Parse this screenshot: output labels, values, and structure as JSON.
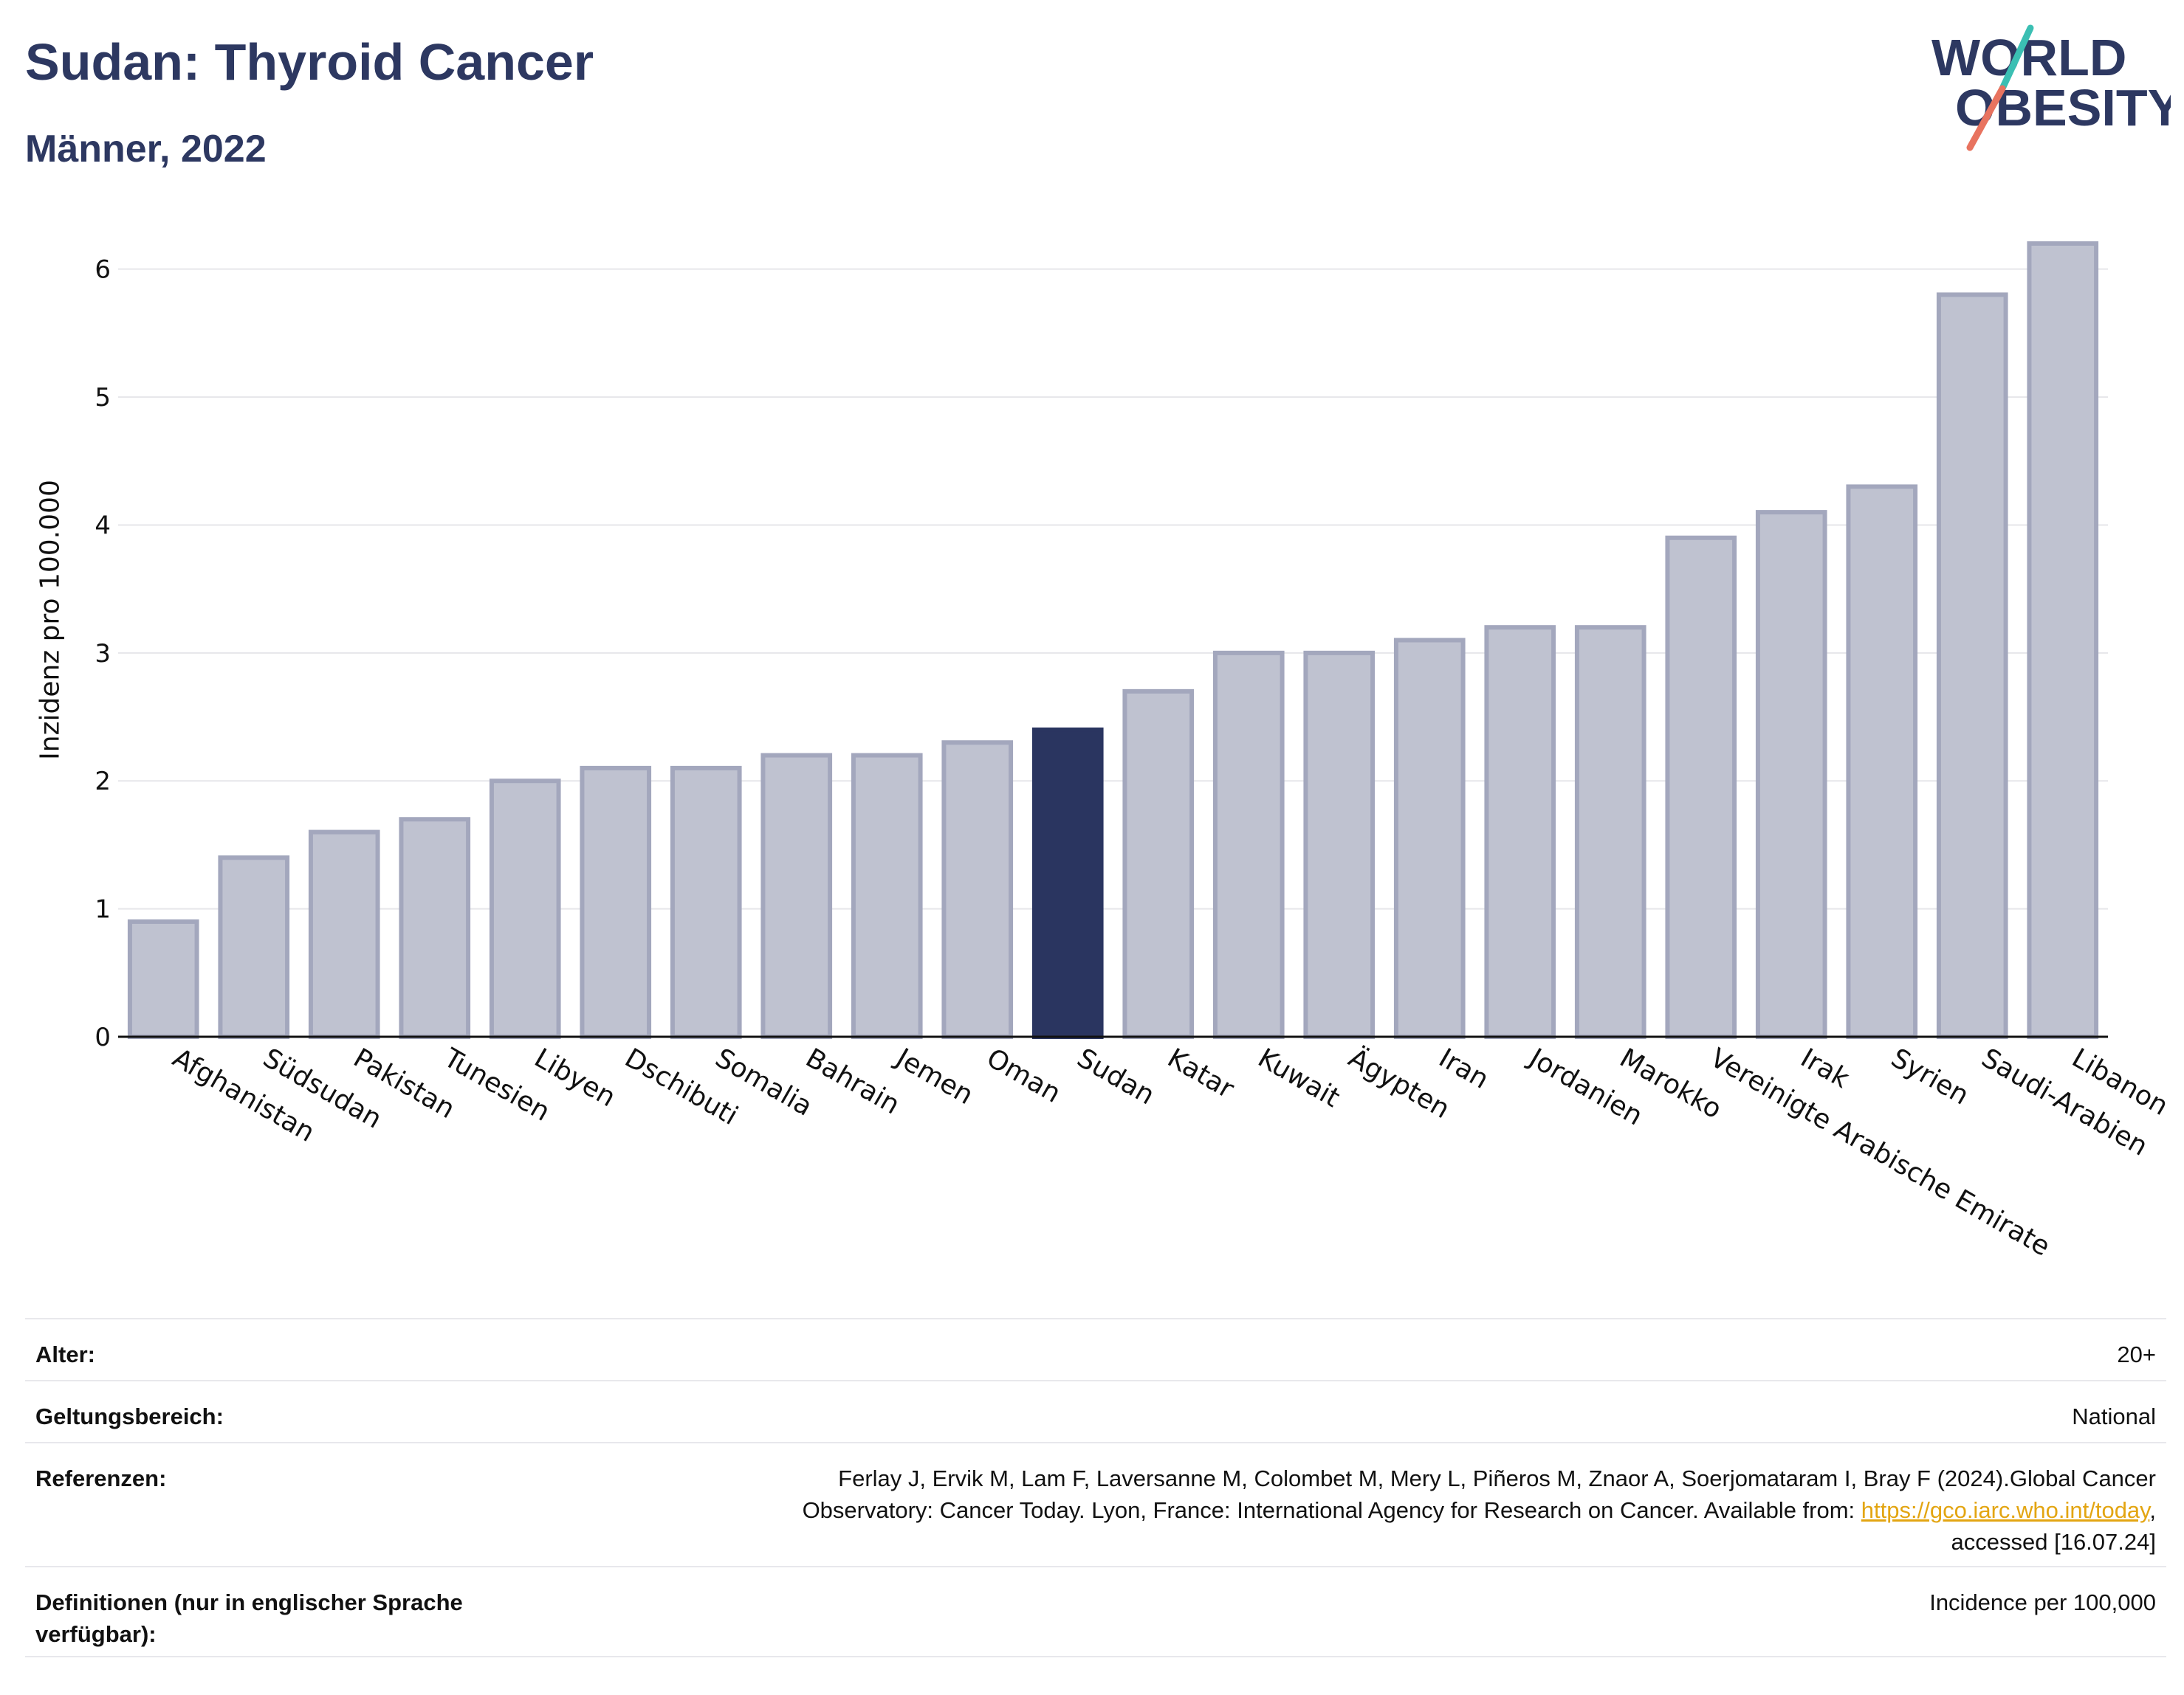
{
  "header": {
    "title": "Sudan: Thyroid Cancer",
    "subtitle": "Männer, 2022",
    "logo_line1": "WORLD",
    "logo_line2": "OBESITY"
  },
  "colors": {
    "highlight": "#2a3560",
    "bar_fill": "#bfc2d0",
    "bar_edge": "#a3a7bd",
    "title": "#2d3861",
    "link": "#e3a512",
    "logo_teal": "#3bbfb3",
    "logo_coral": "#e8735f"
  },
  "chart_data": {
    "type": "bar",
    "ylabel": "Inzidenz pro 100.000",
    "ylim": [
      0,
      6.5
    ],
    "yticks": [
      0,
      1,
      2,
      3,
      4,
      5,
      6
    ],
    "grid": true,
    "highlight_category": "Sudan",
    "categories": [
      "Afghanistan",
      "Südsudan",
      "Pakistan",
      "Tunesien",
      "Libyen",
      "Dschibuti",
      "Somalia",
      "Bahrain",
      "Jemen",
      "Oman",
      "Sudan",
      "Katar",
      "Kuwait",
      "Ägypten",
      "Iran",
      "Jordanien",
      "Marokko",
      "Vereinigte Arabische Emirate",
      "Irak",
      "Syrien",
      "Saudi-Arabien",
      "Libanon"
    ],
    "values": [
      0.9,
      1.4,
      1.6,
      1.7,
      2.0,
      2.1,
      2.1,
      2.2,
      2.2,
      2.3,
      2.4,
      2.7,
      3.0,
      3.0,
      3.1,
      3.2,
      3.2,
      3.9,
      4.1,
      4.3,
      5.8,
      6.2
    ]
  },
  "meta": {
    "age_label": "Alter:",
    "age_value": "20+",
    "scope_label": "Geltungsbereich:",
    "scope_value": "National",
    "references_label": "Referenzen:",
    "references_line1": "Ferlay J, Ervik M, Lam F, Laversanne M, Colombet M, Mery L, Piñeros M, Znaor A, Soerjomataram I, Bray F (2024).Global Cancer",
    "references_line2_pre": "Observatory: Cancer Today. Lyon, France: International Agency for Research on Cancer. Available from: ",
    "references_link": "https://gco.iarc.who.int/today",
    "references_line2_post": ",",
    "references_line3": "accessed [16.07.24]",
    "definitions_label": "Definitionen (nur in englischer Sprache verfügbar):",
    "definitions_value": "Incidence per 100,000"
  }
}
